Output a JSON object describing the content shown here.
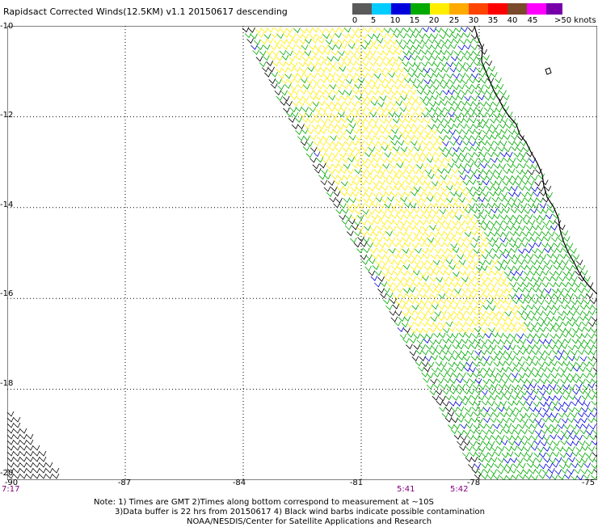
{
  "title": "Rapidsact Corrected Winds(12.5KM) v1.1 20150617 descending",
  "colorbar": {
    "labels": [
      "0",
      "5",
      "10",
      "15",
      "20",
      "25",
      "30",
      "35",
      "40",
      "45",
      ">50 knots"
    ],
    "colors": [
      "#5a5a5a",
      "#00ccff",
      "#0000dd",
      "#00aa00",
      "#ffee00",
      "#ffaa00",
      "#ff4400",
      "#ff0000",
      "#7a4a2a",
      "#ff00ff",
      "#7700aa"
    ]
  },
  "map": {
    "lat_range": [
      -20,
      -10
    ],
    "lon_range": [
      -90,
      -75
    ],
    "lat_labels": [
      "-10",
      "-12",
      "-14",
      "-16",
      "-18",
      "-20"
    ],
    "lon_labels": [
      "-90",
      "-87",
      "-84",
      "-81",
      "-78",
      "-75"
    ],
    "grid": "dotted"
  },
  "times": [
    {
      "label": "7:17",
      "lon": -90
    },
    {
      "label": "5:41",
      "lon": -79.8
    },
    {
      "label": "5:42",
      "lon": -78.5
    }
  ],
  "notes": [
    "Note: 1) Times are GMT 2)Times along bottom correspond to measurement at ~10S",
    "3)Data buffer is 22 hrs from 20150617 4) Black wind barbs indicate possible contamination",
    "NOAA/NESDIS/Center for Satellite Applications and Research"
  ]
}
